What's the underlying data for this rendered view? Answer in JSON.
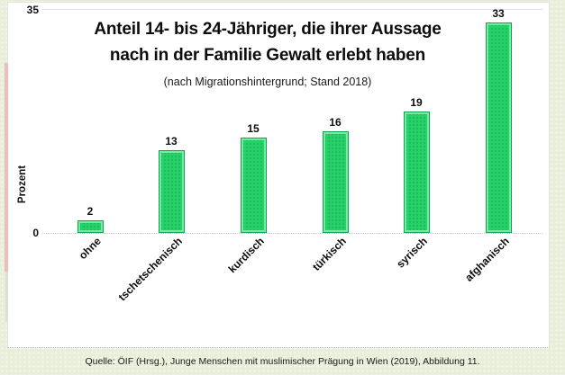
{
  "page": {
    "background_color": "#e8eeda",
    "decorations": {
      "left_strip_color": "#edbfbc"
    }
  },
  "chart_data": {
    "type": "bar",
    "title": "Anteil 14- bis 24-Jähriger, die ihrer Aussage nach in der Familie Gewalt erlebt haben",
    "title_lines": [
      "Anteil 14- bis 24-Jähriger, die ihrer Aussage",
      "nach in der Familie Gewalt erlebt haben"
    ],
    "subtitle": "(nach Migrationshintergrund; Stand 2018)",
    "ylabel": "Prozent",
    "xlabel": "",
    "categories": [
      "ohne",
      "tschetschenisch",
      "kurdisch",
      "türkisch",
      "syrisch",
      "afghanisch"
    ],
    "values": [
      2,
      13,
      15,
      16,
      19,
      33
    ],
    "ylim": [
      0,
      35
    ],
    "yticks": [
      "35",
      "0"
    ],
    "legend_position": "none",
    "grid": "horizontal lines at 0 and 35 only",
    "bar_color": "#26d169",
    "bar_border_color": "#0ea452",
    "bar_highlight_color": "#86f0af",
    "value_labels_shown": true,
    "source": "Quelle: ÖIF (Hrsg.), Junge Menschen mit muslimischer Prägung in Wien (2019), Abbildung 11."
  }
}
